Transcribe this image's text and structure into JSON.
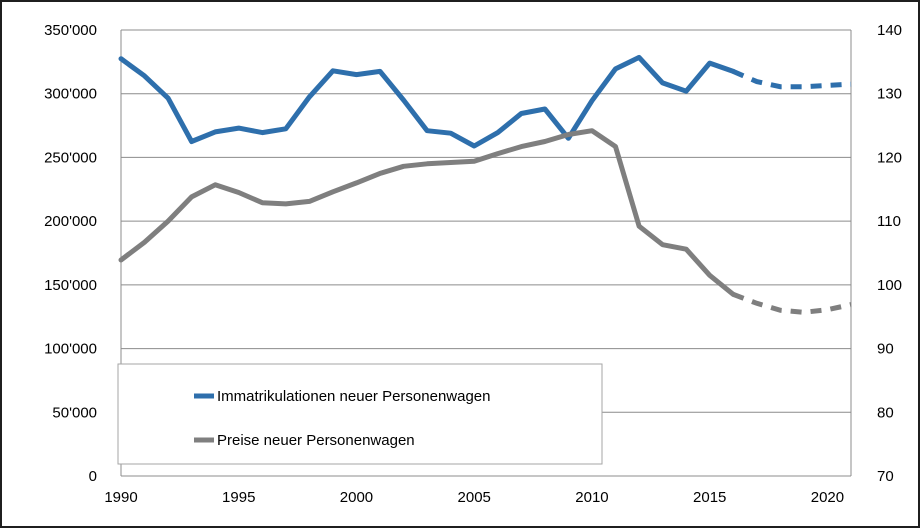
{
  "chart_data": {
    "type": "line",
    "title": "",
    "x": [
      1990,
      1991,
      1992,
      1993,
      1994,
      1995,
      1996,
      1997,
      1998,
      1999,
      2000,
      2001,
      2002,
      2003,
      2004,
      2005,
      2006,
      2007,
      2008,
      2009,
      2010,
      2011,
      2012,
      2013,
      2014,
      2015,
      2016,
      2017,
      2018,
      2019,
      2020,
      2021
    ],
    "xlim": [
      1990,
      2021
    ],
    "x_ticks": [
      1990,
      1995,
      2000,
      2005,
      2010,
      2015,
      2020
    ],
    "ylim_left": [
      0,
      350000
    ],
    "y_ticks_left": [
      "0",
      "50'000",
      "100'000",
      "150'000",
      "200'000",
      "250'000",
      "300'000",
      "350'000"
    ],
    "ylim_right": [
      70,
      140
    ],
    "y_ticks_right": [
      "70",
      "80",
      "90",
      "100",
      "110",
      "120",
      "130",
      "140"
    ],
    "grid": "horizontal",
    "legend_position": "bottom-left",
    "series": [
      {
        "name": "Immatrikulationen neuer Personenwagen",
        "axis": "left",
        "color": "#2e6fac",
        "values": [
          327500,
          314000,
          296500,
          262500,
          270000,
          273000,
          269500,
          272500,
          297500,
          318000,
          315000,
          317500,
          295000,
          271000,
          269000,
          259000,
          269500,
          284500,
          288000,
          265000,
          294500,
          319500,
          328500,
          308500,
          302000,
          324000,
          317500,
          309500,
          305500,
          305500,
          306500,
          307500
        ],
        "dashed_from": 2016
      },
      {
        "name": "Preise neuer Personenwagen",
        "axis": "right",
        "color": "#7f7f7f",
        "values": [
          103.9,
          106.7,
          110.0,
          113.8,
          115.7,
          114.5,
          112.9,
          112.7,
          113.1,
          114.6,
          116.0,
          117.5,
          118.6,
          119.0,
          119.2,
          119.4,
          120.6,
          121.7,
          122.5,
          123.6,
          124.2,
          121.7,
          109.2,
          106.3,
          105.6,
          101.5,
          98.5,
          97.1,
          96.0,
          95.7,
          96.1,
          96.9
        ],
        "dashed_from": 2016
      }
    ]
  }
}
